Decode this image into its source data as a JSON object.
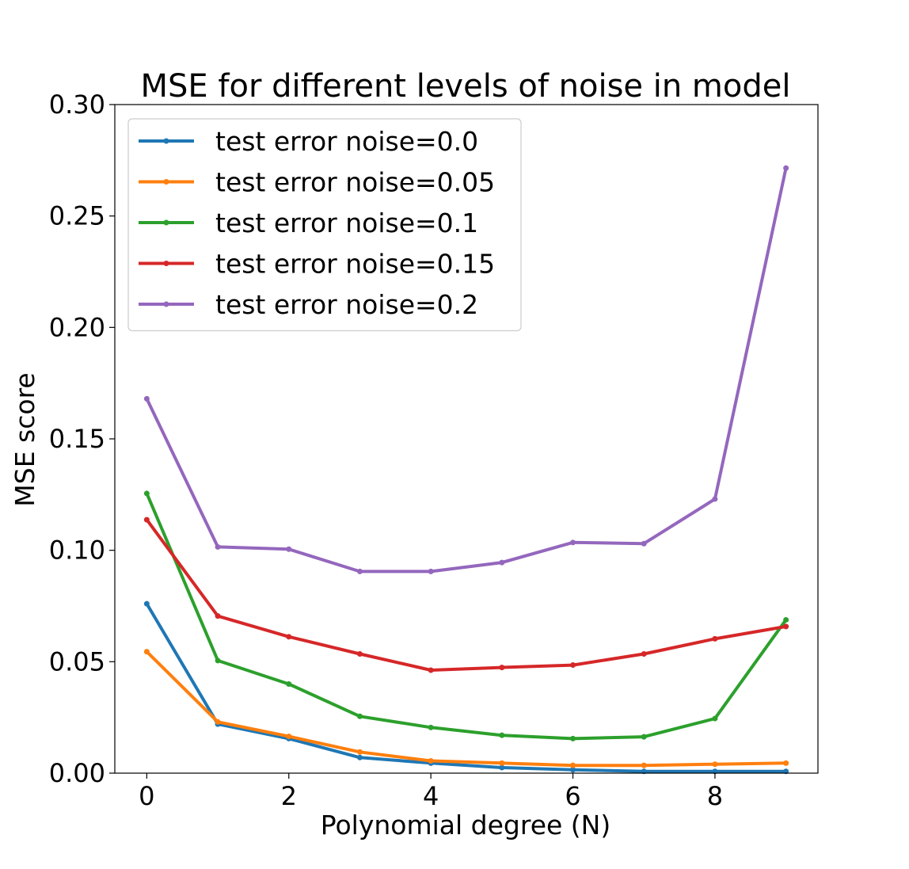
{
  "chart_data": {
    "type": "line",
    "title": "MSE for different levels of noise in model",
    "xlabel": "Polynomial degree (N)",
    "ylabel": "MSE score",
    "xlim": [
      -0.45,
      9.45
    ],
    "ylim": [
      0,
      0.3
    ],
    "xticks": [
      0,
      2,
      4,
      6,
      8
    ],
    "xtick_labels": [
      "0",
      "2",
      "4",
      "6",
      "8"
    ],
    "yticks": [
      0,
      0.05,
      0.1,
      0.15,
      0.2,
      0.25,
      0.3
    ],
    "ytick_labels": [
      "0.00",
      "0.05",
      "0.10",
      "0.15",
      "0.20",
      "0.25",
      "0.30"
    ],
    "grid": false,
    "legend_position": "top-left",
    "x": [
      0,
      1,
      2,
      3,
      4,
      5,
      6,
      7,
      8,
      9
    ],
    "series": [
      {
        "name": "test error noise=0.0",
        "color": "#1f77b4",
        "values": [
          0.076,
          0.022,
          0.0155,
          0.007,
          0.0045,
          0.0025,
          0.0015,
          0.0008,
          0.0008,
          0.0008
        ]
      },
      {
        "name": "test error noise=0.05",
        "color": "#ff7f0e",
        "values": [
          0.0545,
          0.023,
          0.0165,
          0.0095,
          0.0055,
          0.0045,
          0.0035,
          0.0035,
          0.004,
          0.0045
        ]
      },
      {
        "name": "test error noise=0.1",
        "color": "#2ca02c",
        "values": [
          0.1255,
          0.0505,
          0.04,
          0.0255,
          0.0205,
          0.017,
          0.0155,
          0.0163,
          0.0245,
          0.0688
        ]
      },
      {
        "name": "test error noise=0.15",
        "color": "#d62728",
        "values": [
          0.1137,
          0.0705,
          0.0612,
          0.0535,
          0.0462,
          0.0474,
          0.0485,
          0.0535,
          0.0603,
          0.0658
        ]
      },
      {
        "name": "test error noise=0.2",
        "color": "#9467bd",
        "values": [
          0.168,
          0.1015,
          0.1005,
          0.0905,
          0.0905,
          0.0945,
          0.1035,
          0.103,
          0.123,
          0.2715
        ]
      }
    ]
  }
}
